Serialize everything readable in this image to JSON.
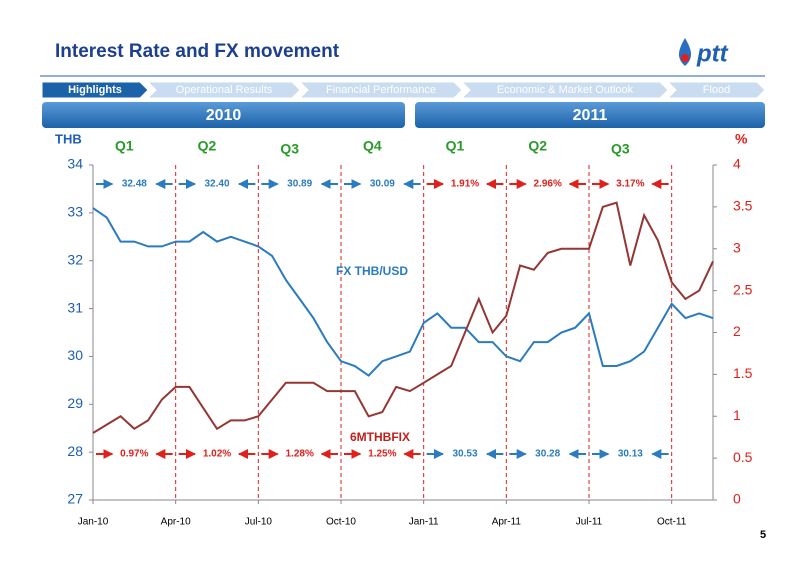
{
  "header": {
    "title": "Interest Rate and FX movement",
    "logo_text": "ptt",
    "page_number": "5"
  },
  "nav": {
    "tabs": [
      "Highlights",
      "Operational Results",
      "Financial Performance",
      "Economic & Market Outlook",
      "Flood"
    ]
  },
  "years": [
    "2010",
    "2011"
  ],
  "chart_data": {
    "type": "line",
    "y_label": "THB",
    "y2_label": "%",
    "quarter_labels": [
      "Q1",
      "Q2",
      "Q3",
      "Q4",
      "Q1",
      "Q2",
      "Q3"
    ],
    "top_annotations": [
      "32.48",
      "32.40",
      "30.89",
      "30.09",
      "1.91%",
      "2.96%",
      "3.17%"
    ],
    "bottom_annotations": [
      "0.97%",
      "1.02%",
      "1.28%",
      "1.25%",
      "30.53",
      "30.28",
      "30.13"
    ],
    "categories": [
      "Jan-10",
      null,
      null,
      null,
      null,
      null,
      "Apr-10",
      null,
      null,
      null,
      null,
      null,
      "Jul-10",
      null,
      null,
      null,
      null,
      null,
      "Oct-10",
      null,
      null,
      null,
      null,
      null,
      "Jan-11",
      null,
      null,
      null,
      null,
      null,
      "Apr-11",
      null,
      null,
      null,
      null,
      null,
      "Jul-11",
      null,
      null,
      null,
      null,
      null,
      "Oct-11",
      null,
      null,
      null
    ],
    "series": [
      {
        "name": "FX THB/USD",
        "color": "#2a7bc0",
        "values": [
          33.1,
          32.9,
          32.4,
          32.4,
          32.3,
          32.3,
          32.4,
          32.4,
          32.6,
          32.4,
          32.5,
          32.4,
          32.3,
          32.1,
          31.6,
          31.2,
          30.8,
          30.3,
          29.9,
          29.8,
          29.6,
          29.9,
          30.0,
          30.1,
          30.7,
          30.9,
          30.6,
          30.6,
          30.3,
          30.3,
          30.0,
          29.9,
          30.3,
          30.3,
          30.5,
          30.6,
          30.9,
          29.8,
          29.8,
          29.9,
          30.1,
          30.6,
          31.1,
          30.8,
          30.9,
          30.8
        ]
      },
      {
        "name": "6MTHBFIX",
        "color": "#943634",
        "axis": "y2",
        "values": [
          0.8,
          0.9,
          1.0,
          0.85,
          0.95,
          1.2,
          1.35,
          1.35,
          1.1,
          0.85,
          0.95,
          0.95,
          1.0,
          1.2,
          1.4,
          1.4,
          1.4,
          1.3,
          1.3,
          1.3,
          1.0,
          1.05,
          1.35,
          1.3,
          1.4,
          1.5,
          1.6,
          2.0,
          2.4,
          2.0,
          2.2,
          2.8,
          2.75,
          2.95,
          3.0,
          3.0,
          3.0,
          3.5,
          3.55,
          2.8,
          3.4,
          3.1,
          2.6,
          2.4,
          2.5,
          2.85
        ]
      }
    ],
    "ylim": [
      27,
      34
    ],
    "yticks": [
      27,
      28,
      29,
      30,
      31,
      32,
      33,
      34
    ],
    "y2lim": [
      0,
      4
    ],
    "y2ticks": [
      0,
      0.5,
      1,
      1.5,
      2,
      2.5,
      3,
      3.5,
      4
    ]
  }
}
